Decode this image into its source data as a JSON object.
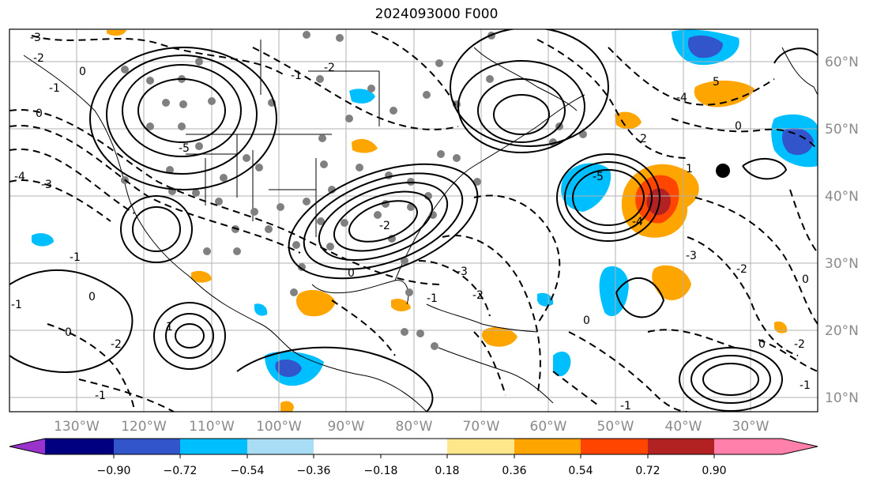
{
  "title": "2024093000 F000",
  "lon_labels": [
    "130°W",
    "120°W",
    "110°W",
    "100°W",
    "90°W",
    "80°W",
    "70°W",
    "60°W",
    "50°W",
    "40°W",
    "30°W"
  ],
  "lat_labels": [
    "60°N",
    "50°N",
    "40°N",
    "30°N",
    "20°N",
    "10°N"
  ],
  "contour_labels": [
    "-3",
    "-2",
    "-1",
    "0",
    "-4",
    "-5",
    "-1",
    "0",
    "-2",
    "-3",
    "5",
    "-4",
    "0",
    "2",
    "1",
    "-1",
    "0",
    "-2",
    "-1",
    "0",
    "-5",
    "-4",
    "-3",
    "-2",
    "-2",
    "-1",
    "0",
    "0",
    "-2",
    "-1",
    "-3",
    "-2",
    "0",
    "-1",
    "1",
    "0",
    "-1"
  ],
  "colorbar": {
    "ticks": [
      "−0.90",
      "−0.72",
      "−0.54",
      "−0.36",
      "−0.18",
      "0.18",
      "0.36",
      "0.54",
      "0.72",
      "0.90"
    ],
    "colors": {
      "under": "#9933cc",
      "b1": "#000080",
      "b2": "#3355cc",
      "b3": "#00bfff",
      "b4": "#a8ddf5",
      "b5": "#ffffff",
      "b6": "#fde78a",
      "b7": "#ffa500",
      "b8": "#ff4500",
      "b9": "#b22222",
      "over": "#ff80aa"
    }
  },
  "colors": {
    "grid": "#b0b0b0",
    "coast": "#000000",
    "stations": "#808080",
    "marker": "#000000"
  }
}
